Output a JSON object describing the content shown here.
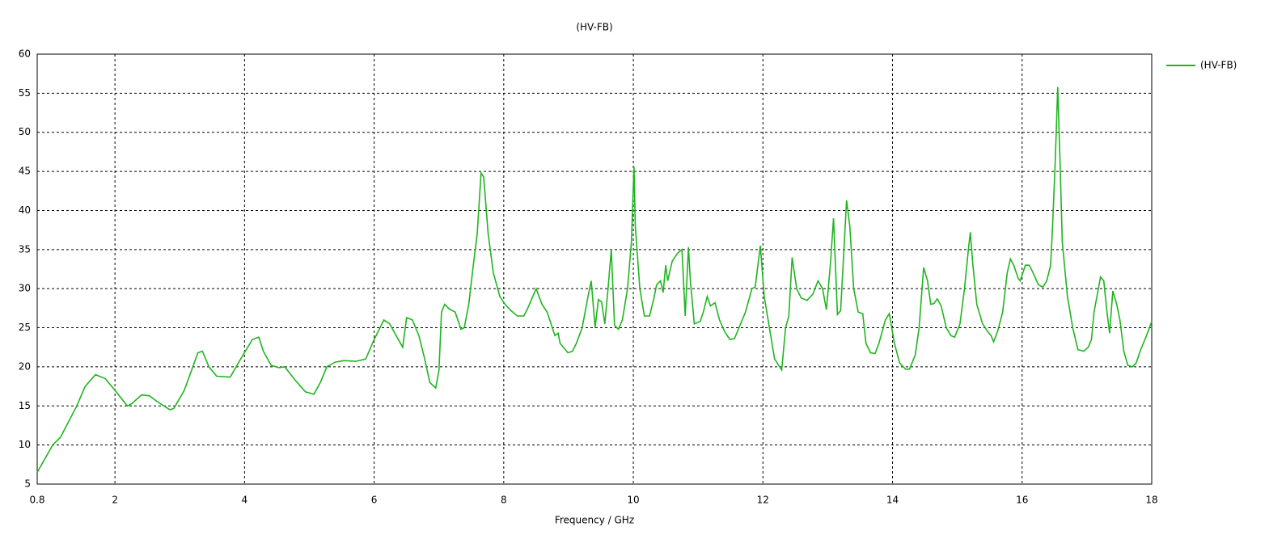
{
  "chart_data": {
    "type": "line",
    "title": "(HV-FB)",
    "x_label": "Frequency / GHz",
    "x": [
      0.8,
      1.04,
      1.16,
      1.41,
      1.54,
      1.7,
      1.85,
      2.0,
      2.19,
      2.26,
      2.41,
      2.53,
      2.66,
      2.85,
      2.91,
      3.07,
      3.28,
      3.35,
      3.45,
      3.57,
      3.78,
      3.94,
      4.12,
      4.22,
      4.29,
      4.41,
      4.53,
      4.62,
      4.78,
      4.94,
      5.07,
      5.17,
      5.27,
      5.4,
      5.53,
      5.72,
      5.87,
      6.0,
      6.15,
      6.24,
      6.34,
      6.44,
      6.5,
      6.59,
      6.69,
      6.78,
      6.86,
      6.95,
      7.0,
      7.04,
      7.09,
      7.16,
      7.25,
      7.34,
      7.39,
      7.46,
      7.53,
      7.59,
      7.65,
      7.69,
      7.76,
      7.84,
      7.94,
      8.02,
      8.11,
      8.21,
      8.31,
      8.37,
      8.5,
      8.59,
      8.67,
      8.79,
      8.84,
      8.87,
      8.99,
      9.06,
      9.12,
      9.21,
      9.3,
      9.35,
      9.41,
      9.46,
      9.51,
      9.56,
      9.61,
      9.66,
      9.71,
      9.77,
      9.83,
      9.91,
      9.97,
      10.01,
      10.03,
      10.1,
      10.17,
      10.25,
      10.31,
      10.36,
      10.42,
      10.46,
      10.5,
      10.53,
      10.6,
      10.68,
      10.75,
      10.8,
      10.85,
      10.88,
      10.94,
      11.03,
      11.08,
      11.14,
      11.19,
      11.26,
      11.33,
      11.41,
      11.49,
      11.56,
      11.63,
      11.73,
      11.83,
      11.88,
      11.96,
      12.02,
      12.09,
      12.18,
      12.29,
      12.35,
      12.4,
      12.45,
      12.52,
      12.59,
      12.68,
      12.77,
      12.85,
      12.92,
      12.98,
      13.04,
      13.09,
      13.15,
      13.2,
      13.27,
      13.29,
      13.34,
      13.4,
      13.47,
      13.54,
      13.59,
      13.66,
      13.73,
      13.79,
      13.89,
      13.95,
      14.03,
      14.11,
      14.2,
      14.26,
      14.35,
      14.41,
      14.48,
      14.54,
      14.59,
      14.64,
      14.69,
      14.75,
      14.83,
      14.9,
      14.96,
      15.04,
      15.11,
      15.17,
      15.2,
      15.24,
      15.3,
      15.39,
      15.47,
      15.52,
      15.56,
      15.62,
      15.7,
      15.77,
      15.82,
      15.87,
      15.94,
      15.97,
      16.01,
      16.05,
      16.11,
      16.17,
      16.25,
      16.32,
      16.38,
      16.44,
      16.47,
      16.51,
      16.55,
      16.59,
      16.62,
      16.7,
      16.78,
      16.86,
      16.95,
      17.02,
      17.07,
      17.11,
      17.21,
      17.26,
      17.31,
      17.35,
      17.4,
      17.46,
      17.51,
      17.57,
      17.63,
      17.7,
      17.76,
      17.82,
      17.92,
      18.0
    ],
    "series": [
      {
        "name": "(HV-FB)",
        "color": "#1fb51f",
        "values": [
          6.5,
          10,
          11,
          15,
          17.5,
          19,
          18.5,
          17,
          15,
          15.3,
          16.4,
          16.3,
          15.5,
          14.5,
          14.7,
          17,
          21.8,
          22,
          20,
          18.8,
          18.7,
          21,
          23.5,
          23.8,
          22,
          20.2,
          19.9,
          20,
          18.3,
          16.8,
          16.5,
          18,
          20,
          20.6,
          20.8,
          20.7,
          21,
          23.5,
          26,
          25.5,
          24,
          22.5,
          26.3,
          26,
          24,
          21,
          18,
          17.3,
          19.5,
          27,
          28,
          27.4,
          27,
          24.8,
          25,
          28,
          33,
          37,
          44.8,
          44.3,
          37,
          32,
          29,
          28,
          27.2,
          26.5,
          26.5,
          27.5,
          30,
          28,
          27,
          24,
          24.3,
          23,
          21.8,
          22,
          23,
          25,
          29,
          31,
          25,
          28.6,
          28.3,
          25.5,
          30,
          35,
          25.3,
          24.8,
          26,
          30,
          36,
          45.6,
          38,
          30,
          26.5,
          26.5,
          28.5,
          30.5,
          31,
          29.5,
          33,
          31,
          33.5,
          34.5,
          35,
          26.5,
          35.3,
          31,
          25.5,
          25.8,
          27,
          29,
          27.8,
          28.2,
          26,
          24.5,
          23.5,
          23.6,
          25,
          27,
          30,
          30.2,
          35.5,
          29,
          25.5,
          21,
          19.6,
          25,
          26.5,
          34,
          30,
          28.8,
          28.5,
          29.3,
          31,
          30,
          27.3,
          33,
          39,
          26.7,
          27.2,
          38,
          41.3,
          38,
          30,
          27,
          26.8,
          23,
          21.8,
          21.7,
          23,
          26,
          26.8,
          23,
          20.5,
          19.7,
          19.7,
          21.5,
          25,
          32.7,
          31,
          28,
          28.1,
          28.7,
          27.8,
          25,
          24,
          23.8,
          25.5,
          30,
          35,
          37.2,
          33,
          28,
          25.5,
          24.5,
          24,
          23.2,
          24.5,
          27,
          32,
          33.8,
          33,
          31.3,
          31,
          32,
          33,
          33,
          32,
          30.5,
          30.2,
          31,
          33,
          38,
          46,
          55.8,
          45,
          36,
          29,
          25,
          22.2,
          22,
          22.5,
          23.5,
          27,
          31.5,
          31,
          27,
          24.3,
          29.7,
          28,
          26,
          22,
          20.2,
          20,
          20.5,
          22,
          24,
          25.8
        ]
      }
    ],
    "xlim": [
      0.8,
      18
    ],
    "xticks": [
      0.8,
      2,
      4,
      6,
      8,
      10,
      12,
      14,
      16,
      18
    ],
    "ylim": [
      5,
      60
    ],
    "yticks": [
      5,
      10,
      15,
      20,
      25,
      30,
      35,
      40,
      45,
      50,
      55,
      60
    ],
    "grid": true,
    "legend": "right"
  }
}
